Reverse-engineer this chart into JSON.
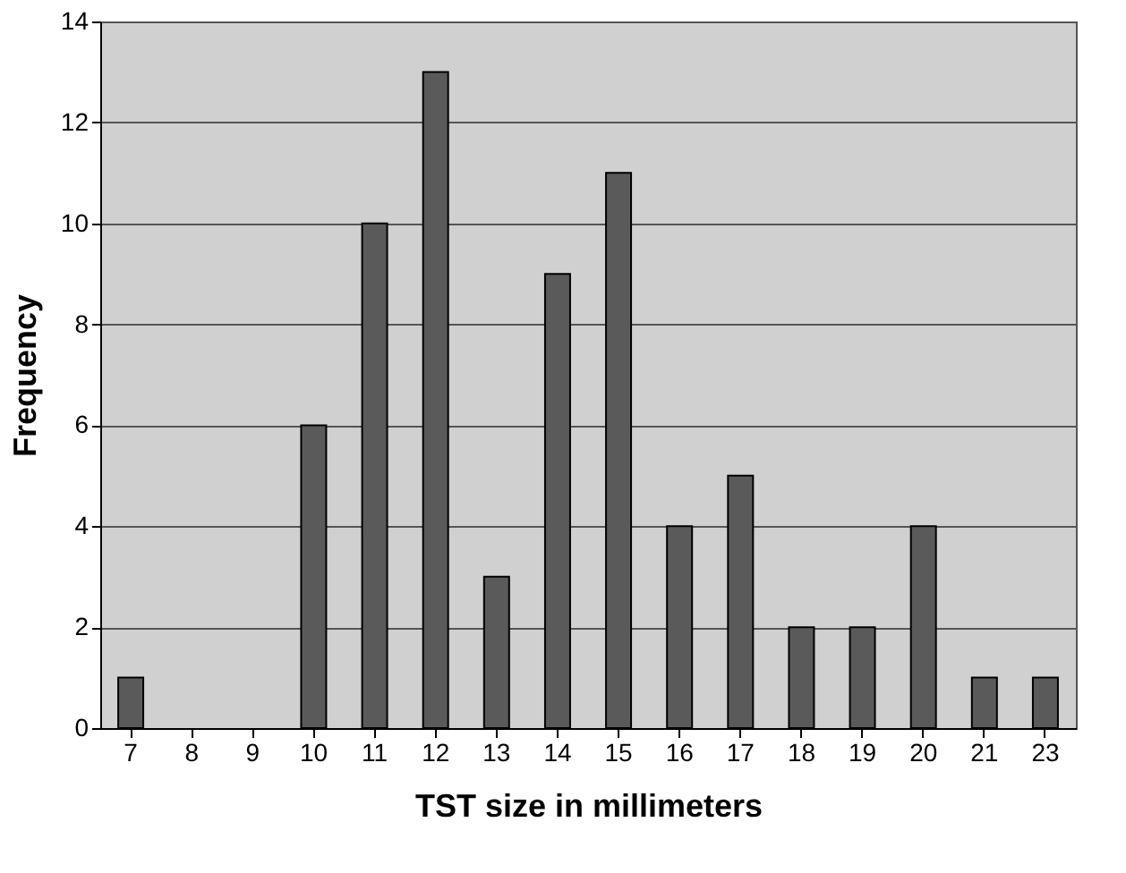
{
  "chart_data": {
    "type": "bar",
    "xlabel": "TST size in millimeters",
    "ylabel": "Frequency",
    "categories": [
      "7",
      "8",
      "9",
      "10",
      "11",
      "12",
      "13",
      "14",
      "15",
      "16",
      "17",
      "18",
      "19",
      "20",
      "21",
      "23"
    ],
    "values": [
      1,
      0,
      0,
      6,
      10,
      13,
      3,
      9,
      11,
      4,
      5,
      2,
      2,
      4,
      1,
      1
    ],
    "color": "#5a5a5a",
    "ylim": [
      0,
      14
    ],
    "yticks": [
      0,
      2,
      4,
      6,
      8,
      10,
      12,
      14
    ],
    "grid": "y"
  }
}
